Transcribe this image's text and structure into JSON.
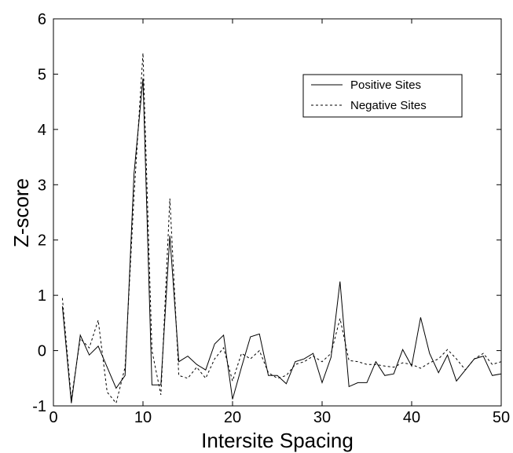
{
  "chart_data": {
    "type": "line",
    "title": "",
    "xlabel": "Intersite Spacing",
    "ylabel": "Z-score",
    "xlim": [
      0,
      50
    ],
    "ylim": [
      -1,
      6
    ],
    "xticks": [
      0,
      10,
      20,
      30,
      40,
      50
    ],
    "yticks": [
      -1,
      0,
      1,
      2,
      3,
      4,
      5,
      6
    ],
    "grid": false,
    "legend_position": "top-right",
    "x": [
      1,
      2,
      3,
      4,
      5,
      6,
      7,
      8,
      9,
      10,
      11,
      12,
      13,
      14,
      15,
      16,
      17,
      18,
      19,
      20,
      21,
      22,
      23,
      24,
      25,
      26,
      27,
      28,
      29,
      30,
      31,
      32,
      33,
      34,
      35,
      36,
      37,
      38,
      39,
      40,
      41,
      42,
      43,
      44,
      45,
      46,
      47,
      48,
      49,
      50
    ],
    "series": [
      {
        "name": "Positive Sites",
        "style": "solid",
        "color": "#000000",
        "values": [
          0.8,
          -0.95,
          0.28,
          -0.08,
          0.08,
          -0.3,
          -0.68,
          -0.45,
          3.2,
          4.92,
          -0.62,
          -0.62,
          2.08,
          -0.2,
          -0.1,
          -0.25,
          -0.35,
          0.12,
          0.28,
          -0.88,
          -0.3,
          0.25,
          0.3,
          -0.45,
          -0.45,
          -0.6,
          -0.2,
          -0.15,
          -0.05,
          -0.58,
          -0.12,
          1.25,
          -0.65,
          -0.58,
          -0.58,
          -0.2,
          -0.45,
          -0.42,
          0.02,
          -0.28,
          0.6,
          -0.05,
          -0.4,
          -0.08,
          -0.55,
          -0.35,
          -0.15,
          -0.1,
          -0.45,
          -0.42
        ]
      },
      {
        "name": "Negative Sites",
        "style": "dashed",
        "color": "#000000",
        "values": [
          0.95,
          -0.88,
          0.22,
          0.05,
          0.55,
          -0.75,
          -0.95,
          -0.3,
          2.8,
          5.38,
          0.0,
          -0.8,
          2.75,
          -0.45,
          -0.5,
          -0.3,
          -0.5,
          -0.15,
          0.05,
          -0.55,
          -0.05,
          -0.15,
          0.0,
          -0.4,
          -0.5,
          -0.45,
          -0.25,
          -0.2,
          -0.1,
          -0.2,
          -0.05,
          0.58,
          -0.18,
          -0.2,
          -0.25,
          -0.25,
          -0.28,
          -0.3,
          -0.22,
          -0.25,
          -0.32,
          -0.22,
          -0.15,
          0.02,
          -0.15,
          -0.35,
          -0.15,
          -0.05,
          -0.25,
          -0.2
        ]
      }
    ]
  }
}
